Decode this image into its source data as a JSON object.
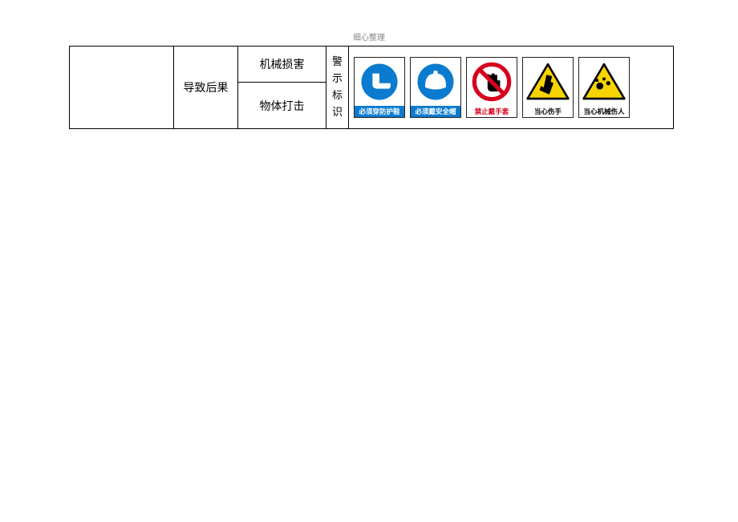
{
  "header": {
    "title": "细心整理"
  },
  "table": {
    "col1_blank": "",
    "cause_label": "导致后果",
    "row1_item": "机械损害",
    "row2_item": "物体打击",
    "vertical_label_chars": [
      "警",
      "示",
      "标",
      "识"
    ]
  },
  "signs": {
    "items": [
      {
        "name": "mandatory-shoes",
        "kind": "mandatory",
        "caption": "必须穿防护鞋",
        "icon": "boot",
        "fg": "#ffffff",
        "bg": "#0b7bd0"
      },
      {
        "name": "mandatory-helmet",
        "kind": "mandatory",
        "caption": "必须戴安全帽",
        "icon": "helmet",
        "fg": "#ffffff",
        "bg": "#0b7bd0"
      },
      {
        "name": "prohibit-gloves",
        "kind": "prohibit",
        "caption": "禁止戴手套",
        "icon": "glove",
        "fg": "#d6001c",
        "bg": "#ffffff"
      },
      {
        "name": "warn-hand",
        "kind": "warn",
        "caption": "当心伤手",
        "icon": "hand",
        "fg": "#000000",
        "bg": "#f6d400"
      },
      {
        "name": "warn-machine",
        "kind": "warn",
        "caption": "当心机械伤人",
        "icon": "gear",
        "fg": "#000000",
        "bg": "#f6d400"
      }
    ]
  },
  "colors": {
    "mandatory_blue": "#0b7bd0",
    "prohibit_red": "#d6001c",
    "warn_yellow": "#f6d400",
    "border_black": "#000000",
    "white": "#ffffff"
  }
}
